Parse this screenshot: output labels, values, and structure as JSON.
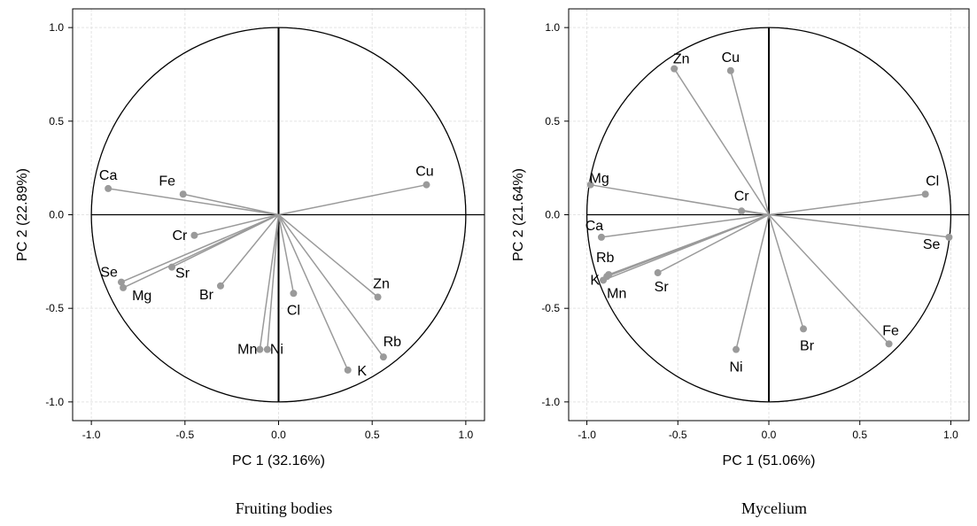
{
  "chart_data": [
    {
      "type": "scatter",
      "subtype": "pca-loadings-circle",
      "caption": "Fruiting bodies",
      "xlabel": "PC 1 (32.16%)",
      "ylabel": "PC 2 (22.89%)",
      "xlim": [
        -1.1,
        1.1
      ],
      "ylim": [
        -1.1,
        1.1
      ],
      "xticks": [
        "-1.0",
        "-0.5",
        "0.0",
        "0.5",
        "1.0"
      ],
      "yticks": [
        "-1.0",
        "-0.5",
        "0.0",
        "0.5",
        "1.0"
      ],
      "grid": true,
      "points": [
        {
          "label": "Ca",
          "x": -0.91,
          "y": 0.14
        },
        {
          "label": "Fe",
          "x": -0.51,
          "y": 0.11
        },
        {
          "label": "Cu",
          "x": 0.79,
          "y": 0.16
        },
        {
          "label": "Cr",
          "x": -0.45,
          "y": -0.11
        },
        {
          "label": "Se",
          "x": -0.84,
          "y": -0.36
        },
        {
          "label": "Sr",
          "x": -0.57,
          "y": -0.28
        },
        {
          "label": "Mg",
          "x": -0.83,
          "y": -0.39
        },
        {
          "label": "Br",
          "x": -0.31,
          "y": -0.38
        },
        {
          "label": "Cl",
          "x": 0.08,
          "y": -0.42
        },
        {
          "label": "Zn",
          "x": 0.53,
          "y": -0.44
        },
        {
          "label": "Mn",
          "x": -0.1,
          "y": -0.72
        },
        {
          "label": "Ni",
          "x": -0.06,
          "y": -0.72
        },
        {
          "label": "Rb",
          "x": 0.56,
          "y": -0.76
        },
        {
          "label": "K",
          "x": 0.37,
          "y": -0.83
        }
      ]
    },
    {
      "type": "scatter",
      "subtype": "pca-loadings-circle",
      "caption": "Mycelium",
      "xlabel": "PC 1 (51.06%)",
      "ylabel": "PC 2 (21.64%)",
      "xlim": [
        -1.1,
        1.1
      ],
      "ylim": [
        -1.1,
        1.1
      ],
      "xticks": [
        "-1.0",
        "-0.5",
        "0.0",
        "0.5",
        "1.0"
      ],
      "yticks": [
        "-1.0",
        "-0.5",
        "0.0",
        "0.5",
        "1.0"
      ],
      "grid": true,
      "points": [
        {
          "label": "Zn",
          "x": -0.52,
          "y": 0.78
        },
        {
          "label": "Cu",
          "x": -0.21,
          "y": 0.77
        },
        {
          "label": "Mg",
          "x": -0.98,
          "y": 0.16
        },
        {
          "label": "Cl",
          "x": 0.86,
          "y": 0.11
        },
        {
          "label": "Cr",
          "x": -0.15,
          "y": 0.02
        },
        {
          "label": "Ca",
          "x": -0.92,
          "y": -0.12
        },
        {
          "label": "Se",
          "x": 0.99,
          "y": -0.12
        },
        {
          "label": "Rb",
          "x": -0.88,
          "y": -0.32
        },
        {
          "label": "K",
          "x": -0.91,
          "y": -0.35
        },
        {
          "label": "Mn",
          "x": -0.89,
          "y": -0.33
        },
        {
          "label": "Sr",
          "x": -0.61,
          "y": -0.31
        },
        {
          "label": "Br",
          "x": 0.19,
          "y": -0.61
        },
        {
          "label": "Fe",
          "x": 0.66,
          "y": -0.69
        },
        {
          "label": "Ni",
          "x": -0.18,
          "y": -0.72
        }
      ]
    }
  ]
}
